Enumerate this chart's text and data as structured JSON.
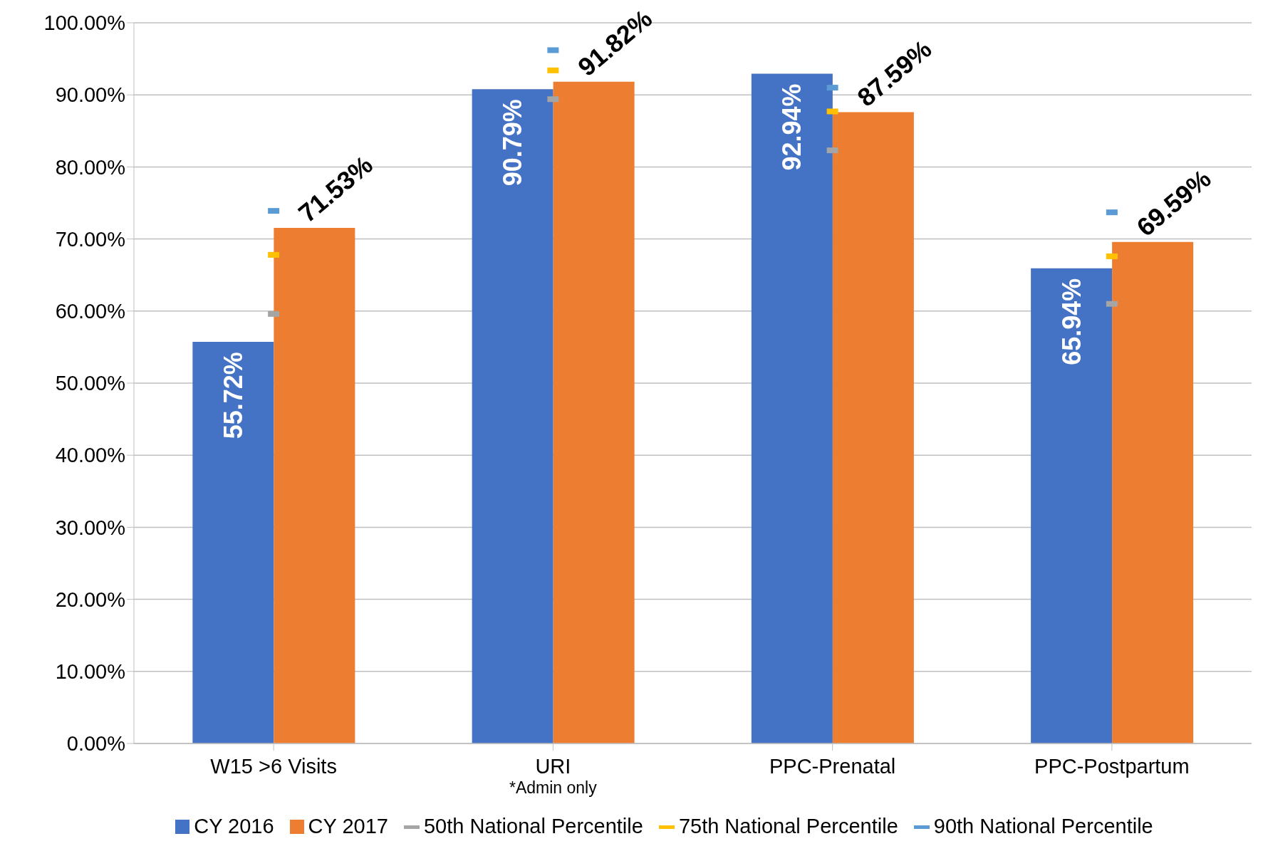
{
  "chart_data": {
    "type": "bar",
    "categories": [
      "W15 >6 Visits",
      "URI",
      "PPC-Prenatal",
      "PPC-Postpartum"
    ],
    "series": [
      {
        "name": "CY 2016",
        "color": "#4472c4",
        "values": [
          55.72,
          90.79,
          92.94,
          65.94
        ],
        "value_labels": [
          "55.72%",
          "90.79%",
          "92.94%",
          "65.94%"
        ]
      },
      {
        "name": "CY 2017",
        "color": "#ed7d31",
        "values": [
          71.53,
          91.82,
          87.59,
          69.59
        ],
        "value_labels": [
          "71.53%",
          "91.82%",
          "87.59%",
          "69.59%"
        ]
      },
      {
        "name": "50th National Percentile",
        "type": "scatter",
        "color": "#a5a5a5",
        "values": [
          59.6,
          89.4,
          82.3,
          61.0
        ]
      },
      {
        "name": "75th National Percentile",
        "type": "scatter",
        "color": "#ffc000",
        "values": [
          67.8,
          93.4,
          87.7,
          67.6
        ]
      },
      {
        "name": "90th National Percentile",
        "type": "scatter",
        "color": "#5b9bd5",
        "values": [
          73.9,
          96.2,
          91.0,
          73.7
        ]
      }
    ],
    "annotations": [
      "*Admin only"
    ],
    "ylim": [
      0,
      100
    ],
    "yticks": [
      {
        "value": 0,
        "label": "0.00%"
      },
      {
        "value": 10,
        "label": "10.00%"
      },
      {
        "value": 20,
        "label": "20.00%"
      },
      {
        "value": 30,
        "label": "30.00%"
      },
      {
        "value": 40,
        "label": "40.00%"
      },
      {
        "value": 50,
        "label": "50.00%"
      },
      {
        "value": 60,
        "label": "60.00%"
      },
      {
        "value": 70,
        "label": "70.00%"
      },
      {
        "value": 80,
        "label": "80.00%"
      },
      {
        "value": 90,
        "label": "90.00%"
      },
      {
        "value": 100,
        "label": "100.00%"
      }
    ],
    "grid": "y",
    "legend": "bottom"
  }
}
